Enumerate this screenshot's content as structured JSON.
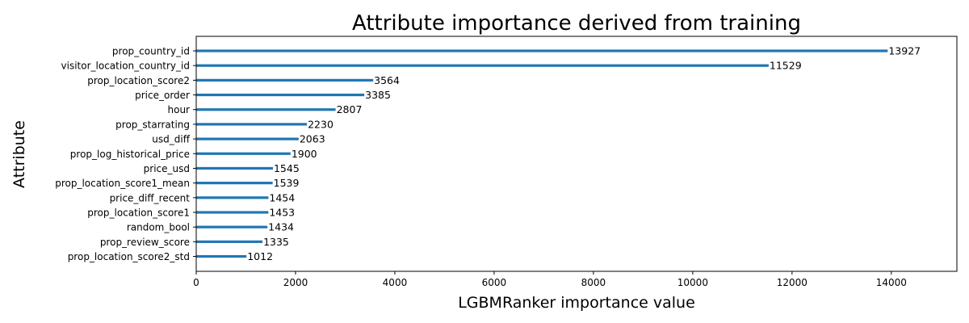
{
  "chart_data": {
    "type": "bar",
    "orientation": "horizontal",
    "title": "Attribute importance derived from training",
    "xlabel": "LGBMRanker importance value",
    "ylabel": "Attribute",
    "xlim": [
      0,
      15320
    ],
    "xticks": [
      0,
      2000,
      4000,
      6000,
      8000,
      10000,
      12000,
      14000
    ],
    "grid": false,
    "bar_color": "#1f77b4",
    "categories": [
      "prop_country_id",
      "visitor_location_country_id",
      "prop_location_score2",
      "price_order",
      "hour",
      "prop_starrating",
      "usd_diff",
      "prop_log_historical_price",
      "price_usd",
      "prop_location_score1_mean",
      "price_diff_recent",
      "prop_location_score1",
      "random_bool",
      "prop_review_score",
      "prop_location_score2_std"
    ],
    "values": [
      13927,
      11529,
      3564,
      3385,
      2807,
      2230,
      2063,
      1900,
      1545,
      1539,
      1454,
      1453,
      1434,
      1335,
      1012
    ]
  }
}
